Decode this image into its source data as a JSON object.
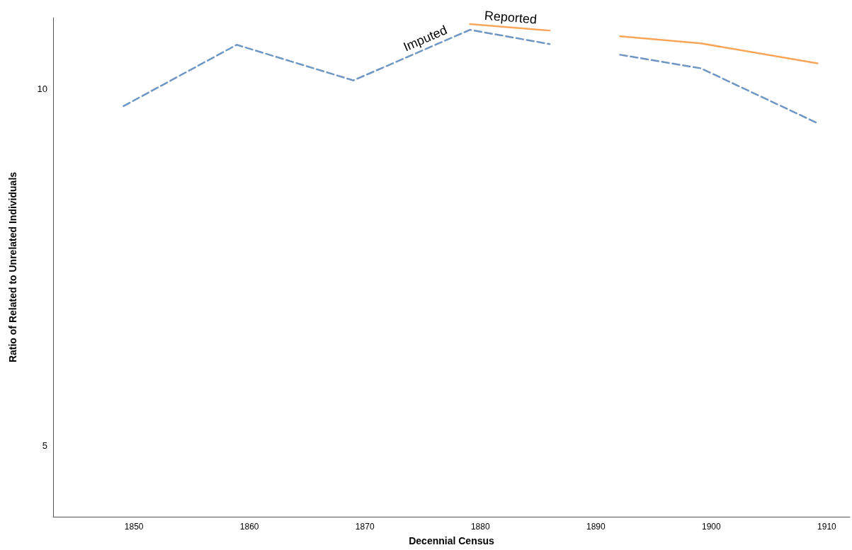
{
  "chart_data": {
    "type": "line",
    "xlabel": "Decennial Census",
    "ylabel": "Ratio of Related to Unrelated Individuals",
    "xlim": [
      1843,
      1912
    ],
    "xticks": [
      1850,
      1860,
      1870,
      1880,
      1890,
      1900,
      1910
    ],
    "ylim": [
      4,
      11
    ],
    "yticks": [
      5,
      10
    ],
    "grid": false,
    "legend": false,
    "marker": "none",
    "series": [
      {
        "name": "Imputed",
        "color": "#7097c3",
        "line_style": "dashed",
        "x": [
          1849.1,
          1858.9,
          1869,
          1879.1,
          1886,
          1889,
          1892.1,
          1899.1,
          1909.2
        ],
        "values": [
          9.76,
          10.62,
          10.12,
          10.83,
          10.63,
          null,
          10.48,
          10.29,
          9.52
        ]
      },
      {
        "name": "Reported",
        "color": "#f9a65a",
        "line_style": "solid",
        "x": [
          1879.1,
          1886,
          1889,
          1892.1,
          1899.1,
          1909.2
        ],
        "values": [
          10.91,
          10.82,
          null,
          10.74,
          10.64,
          10.36
        ]
      }
    ]
  }
}
